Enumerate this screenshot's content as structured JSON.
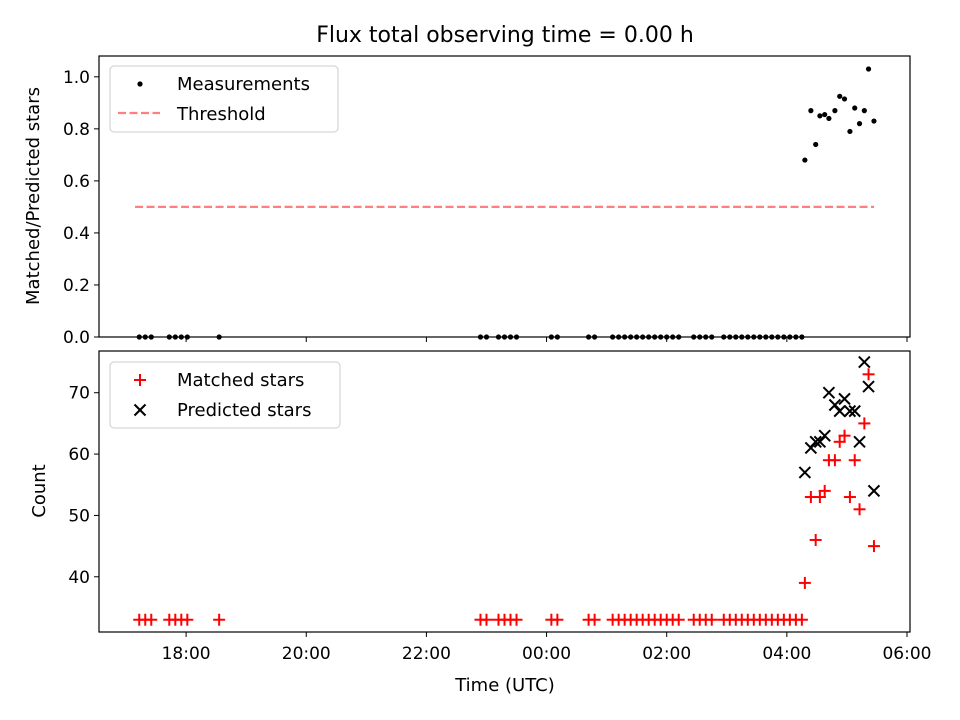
{
  "chart_data": [
    {
      "type": "scatter",
      "title": "Flux total observing time = 0.00 h",
      "xlabel": "",
      "ylabel": "Matched/Predicted stars",
      "xlim_hours": [
        16.55,
        30.05
      ],
      "ylim": [
        0.0,
        1.08
      ],
      "yticks": [
        0.0,
        0.2,
        0.4,
        0.6,
        0.8,
        1.0
      ],
      "ytick_labels": [
        "0.0",
        "0.2",
        "0.4",
        "0.6",
        "0.8",
        "1.0"
      ],
      "xticks_hours": [
        18,
        20,
        22,
        24,
        26,
        28,
        30
      ],
      "legend_position": "top-left",
      "series": [
        {
          "name": "Measurements",
          "marker": "dot",
          "color": "#000000",
          "points": [
            [
              17.22,
              0
            ],
            [
              17.32,
              0
            ],
            [
              17.42,
              0
            ],
            [
              17.72,
              0
            ],
            [
              17.82,
              0
            ],
            [
              17.92,
              0
            ],
            [
              18.02,
              0
            ],
            [
              18.55,
              0
            ],
            [
              22.9,
              0
            ],
            [
              23.0,
              0
            ],
            [
              23.2,
              0
            ],
            [
              23.3,
              0
            ],
            [
              23.4,
              0
            ],
            [
              23.5,
              0
            ],
            [
              24.08,
              0
            ],
            [
              24.18,
              0
            ],
            [
              24.7,
              0
            ],
            [
              24.8,
              0
            ],
            [
              25.1,
              0
            ],
            [
              25.2,
              0
            ],
            [
              25.3,
              0
            ],
            [
              25.4,
              0
            ],
            [
              25.5,
              0
            ],
            [
              25.6,
              0
            ],
            [
              25.7,
              0
            ],
            [
              25.8,
              0
            ],
            [
              25.9,
              0
            ],
            [
              26.0,
              0
            ],
            [
              26.1,
              0
            ],
            [
              26.2,
              0
            ],
            [
              26.45,
              0
            ],
            [
              26.55,
              0
            ],
            [
              26.65,
              0
            ],
            [
              26.75,
              0
            ],
            [
              26.95,
              0
            ],
            [
              27.05,
              0
            ],
            [
              27.15,
              0
            ],
            [
              27.25,
              0
            ],
            [
              27.35,
              0
            ],
            [
              27.45,
              0
            ],
            [
              27.55,
              0
            ],
            [
              27.65,
              0
            ],
            [
              27.75,
              0
            ],
            [
              27.85,
              0
            ],
            [
              27.95,
              0
            ],
            [
              28.05,
              0
            ],
            [
              28.15,
              0
            ],
            [
              28.25,
              0
            ],
            [
              28.3,
              0.68
            ],
            [
              28.4,
              0.87
            ],
            [
              28.48,
              0.74
            ],
            [
              28.55,
              0.85
            ],
            [
              28.63,
              0.855
            ],
            [
              28.7,
              0.84
            ],
            [
              28.8,
              0.87
            ],
            [
              28.88,
              0.925
            ],
            [
              28.96,
              0.915
            ],
            [
              29.05,
              0.79
            ],
            [
              29.13,
              0.88
            ],
            [
              29.21,
              0.82
            ],
            [
              29.29,
              0.87
            ],
            [
              29.36,
              1.03
            ],
            [
              29.45,
              0.83
            ]
          ]
        },
        {
          "name": "Threshold",
          "style": "dashed",
          "color": "#ff7f7f",
          "x_range_hours": [
            17.15,
            29.45
          ],
          "value": 0.5
        }
      ]
    },
    {
      "type": "scatter",
      "title": "",
      "xlabel": "Time (UTC)",
      "ylabel": "Count",
      "xlim_hours": [
        16.55,
        30.05
      ],
      "ylim": [
        31.0,
        76.8
      ],
      "yticks": [
        40,
        50,
        60,
        70
      ],
      "ytick_labels": [
        "40",
        "50",
        "60",
        "70"
      ],
      "xticks_hours": [
        18,
        20,
        22,
        24,
        26,
        28,
        30
      ],
      "xtick_labels": [
        "18:00",
        "20:00",
        "22:00",
        "00:00",
        "02:00",
        "04:00",
        "06:00"
      ],
      "legend_position": "top-left",
      "series": [
        {
          "name": "Matched stars",
          "marker": "plus",
          "color": "#ff0000",
          "points": [
            [
              17.22,
              33
            ],
            [
              17.32,
              33
            ],
            [
              17.42,
              33
            ],
            [
              17.72,
              33
            ],
            [
              17.82,
              33
            ],
            [
              17.92,
              33
            ],
            [
              18.02,
              33
            ],
            [
              18.55,
              33
            ],
            [
              22.9,
              33
            ],
            [
              23.0,
              33
            ],
            [
              23.2,
              33
            ],
            [
              23.3,
              33
            ],
            [
              23.4,
              33
            ],
            [
              23.5,
              33
            ],
            [
              24.08,
              33
            ],
            [
              24.18,
              33
            ],
            [
              24.7,
              33
            ],
            [
              24.8,
              33
            ],
            [
              25.1,
              33
            ],
            [
              25.2,
              33
            ],
            [
              25.3,
              33
            ],
            [
              25.4,
              33
            ],
            [
              25.5,
              33
            ],
            [
              25.6,
              33
            ],
            [
              25.7,
              33
            ],
            [
              25.8,
              33
            ],
            [
              25.9,
              33
            ],
            [
              26.0,
              33
            ],
            [
              26.1,
              33
            ],
            [
              26.2,
              33
            ],
            [
              26.45,
              33
            ],
            [
              26.55,
              33
            ],
            [
              26.65,
              33
            ],
            [
              26.75,
              33
            ],
            [
              26.95,
              33
            ],
            [
              27.05,
              33
            ],
            [
              27.15,
              33
            ],
            [
              27.25,
              33
            ],
            [
              27.35,
              33
            ],
            [
              27.45,
              33
            ],
            [
              27.55,
              33
            ],
            [
              27.65,
              33
            ],
            [
              27.75,
              33
            ],
            [
              27.85,
              33
            ],
            [
              27.95,
              33
            ],
            [
              28.05,
              33
            ],
            [
              28.15,
              33
            ],
            [
              28.25,
              33
            ],
            [
              28.3,
              39
            ],
            [
              28.4,
              53
            ],
            [
              28.48,
              46
            ],
            [
              28.55,
              53
            ],
            [
              28.63,
              54
            ],
            [
              28.7,
              59
            ],
            [
              28.8,
              59
            ],
            [
              28.88,
              62
            ],
            [
              28.96,
              63
            ],
            [
              29.05,
              53
            ],
            [
              29.13,
              59
            ],
            [
              29.21,
              51
            ],
            [
              29.29,
              65
            ],
            [
              29.36,
              73
            ],
            [
              29.45,
              45
            ]
          ]
        },
        {
          "name": "Predicted stars",
          "marker": "x",
          "color": "#000000",
          "points": [
            [
              28.3,
              57
            ],
            [
              28.4,
              61
            ],
            [
              28.48,
              62
            ],
            [
              28.55,
              62
            ],
            [
              28.63,
              63
            ],
            [
              28.7,
              70
            ],
            [
              28.8,
              68
            ],
            [
              28.88,
              67
            ],
            [
              28.96,
              69
            ],
            [
              29.05,
              67
            ],
            [
              29.13,
              67
            ],
            [
              29.21,
              62
            ],
            [
              29.29,
              75
            ],
            [
              29.36,
              71
            ],
            [
              29.45,
              54
            ]
          ]
        }
      ]
    }
  ]
}
